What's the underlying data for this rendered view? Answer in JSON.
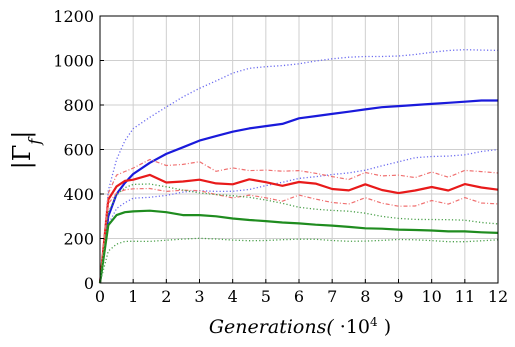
{
  "chart_data": {
    "type": "line",
    "title": "",
    "xlabel_main": "Generations(",
    "xlabel_factor": " ·10",
    "xlabel_exp": "4",
    "xlabel_close": " )",
    "ylabel_main": "|Γ",
    "ylabel_sub": "f",
    "ylabel_close": "|",
    "xlim": [
      0,
      12
    ],
    "ylim": [
      0,
      1200
    ],
    "grid": true,
    "legend": "none",
    "x_ticks": [
      "0",
      "1",
      "2",
      "3",
      "4",
      "5",
      "6",
      "7",
      "8",
      "9",
      "10",
      "11",
      "12"
    ],
    "y_ticks": [
      "0",
      "200",
      "400",
      "600",
      "800",
      "1000",
      "1200"
    ],
    "x": [
      0,
      0.25,
      0.5,
      0.75,
      1,
      1.5,
      2,
      2.5,
      3,
      3.5,
      4,
      4.5,
      5,
      5.5,
      6,
      6.5,
      7,
      7.5,
      8,
      8.5,
      9,
      9.5,
      10,
      10.5,
      11,
      11.5,
      12
    ],
    "series": [
      {
        "color": "#1a1adb",
        "style": "solid",
        "width": 2.2,
        "values": [
          0,
          300,
          400,
          450,
          490,
          540,
          580,
          610,
          640,
          660,
          680,
          695,
          705,
          715,
          740,
          750,
          760,
          770,
          780,
          790,
          795,
          800,
          805,
          810,
          815,
          820,
          820
        ]
      },
      {
        "color": "#6b6bf0",
        "style": "dotted",
        "width": 1.3,
        "values": [
          0,
          420,
          560,
          640,
          690,
          740,
          790,
          840,
          880,
          910,
          940,
          960,
          970,
          980,
          990,
          1000,
          1005,
          1010,
          1015,
          1020,
          1025,
          1030,
          1035,
          1040,
          1045,
          1048,
          1050
        ]
      },
      {
        "color": "#6b6bf0",
        "style": "dotted",
        "width": 1.3,
        "values": [
          0,
          260,
          330,
          360,
          385,
          390,
          395,
          405,
          410,
          410,
          415,
          425,
          440,
          450,
          465,
          475,
          490,
          500,
          510,
          525,
          540,
          560,
          570,
          575,
          580,
          590,
          595
        ]
      },
      {
        "color": "#e81a1a",
        "style": "solid",
        "width": 2.2,
        "values": [
          0,
          380,
          440,
          460,
          460,
          480,
          450,
          460,
          470,
          450,
          440,
          460,
          450,
          440,
          460,
          450,
          420,
          410,
          440,
          420,
          410,
          420,
          430,
          410,
          440,
          430,
          425
        ]
      },
      {
        "color": "#f07070",
        "style": "dashdot",
        "width": 1.2,
        "values": [
          0,
          400,
          480,
          500,
          520,
          560,
          530,
          530,
          540,
          500,
          520,
          510,
          510,
          500,
          500,
          490,
          480,
          470,
          500,
          480,
          480,
          470,
          500,
          480,
          510,
          500,
          490
        ]
      },
      {
        "color": "#f07070",
        "style": "dashdot",
        "width": 1.2,
        "values": [
          0,
          360,
          410,
          420,
          420,
          420,
          410,
          420,
          420,
          400,
          380,
          390,
          380,
          370,
          400,
          380,
          360,
          350,
          380,
          360,
          350,
          350,
          370,
          350,
          380,
          360,
          360
        ]
      },
      {
        "color": "#1f8c1f",
        "style": "solid",
        "width": 2.2,
        "values": [
          0,
          260,
          305,
          318,
          322,
          325,
          318,
          305,
          305,
          300,
          290,
          283,
          278,
          272,
          268,
          262,
          258,
          252,
          246,
          244,
          240,
          238,
          236,
          232,
          232,
          228,
          225
        ]
      },
      {
        "color": "#4aa04a",
        "style": "dotted",
        "width": 1.3,
        "values": [
          0,
          320,
          400,
          430,
          440,
          440,
          430,
          420,
          410,
          400,
          390,
          380,
          370,
          360,
          345,
          335,
          325,
          318,
          310,
          300,
          295,
          290,
          285,
          280,
          278,
          272,
          270
        ]
      },
      {
        "color": "#4aa04a",
        "style": "dotted",
        "width": 1.3,
        "values": [
          0,
          140,
          170,
          185,
          190,
          192,
          195,
          195,
          196,
          195,
          195,
          195,
          194,
          193,
          192,
          193,
          192,
          192,
          192,
          191,
          191,
          190,
          191,
          190,
          190,
          190,
          190
        ]
      }
    ]
  }
}
